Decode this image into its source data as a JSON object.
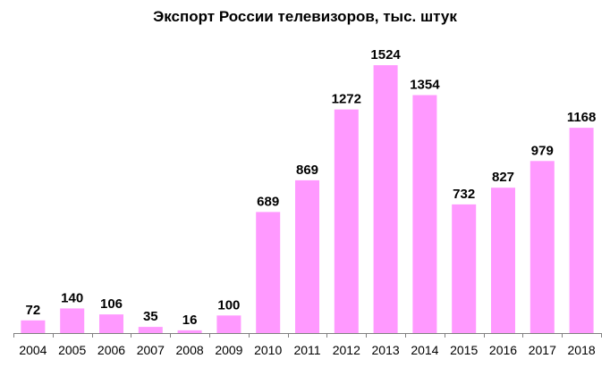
{
  "chart_data": {
    "type": "bar",
    "title": "Экспорт России телевизоров, тыс. штук",
    "categories": [
      "2004",
      "2005",
      "2006",
      "2007",
      "2008",
      "2009",
      "2010",
      "2011",
      "2012",
      "2013",
      "2014",
      "2015",
      "2016",
      "2017",
      "2018"
    ],
    "values": [
      72,
      140,
      106,
      35,
      16,
      100,
      689,
      869,
      1272,
      1524,
      1354,
      732,
      827,
      979,
      1168
    ],
    "xlabel": "",
    "ylabel": "",
    "ylim": [
      0,
      1524
    ],
    "grid": false,
    "legend": "none",
    "data_labels": true,
    "colors": {
      "bar": "#ff99ff",
      "axis": "#808080",
      "text": "#000000"
    }
  }
}
